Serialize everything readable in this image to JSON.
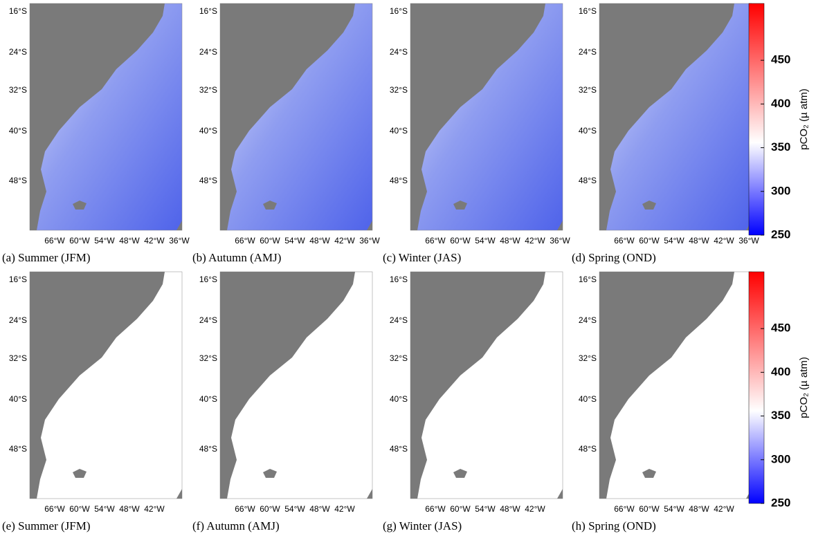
{
  "panels": [
    {
      "caption": "(a) Summer (JFM)",
      "yticks": [
        "16°S",
        "24°S",
        "32°S",
        "40°S",
        "48°S"
      ],
      "xticks": [
        "66°W",
        "60°W",
        "54°W",
        "48°W",
        "42°W",
        "36°W"
      ]
    },
    {
      "caption": "(b) Autumn (AMJ)",
      "yticks": [
        "16°S",
        "24°S",
        "32°S",
        "40°S",
        "48°S"
      ],
      "xticks": [
        "66°W",
        "60°W",
        "54°W",
        "48°W",
        "42°W",
        "36°W"
      ]
    },
    {
      "caption": "(c) Winter (JAS)",
      "yticks": [
        "16°S",
        "24°S",
        "32°S",
        "40°S",
        "48°S"
      ],
      "xticks": [
        "66°W",
        "60°W",
        "54°W",
        "48°W",
        "42°W",
        "36°W"
      ]
    },
    {
      "caption": "(d) Spring (OND)",
      "yticks": [
        "16°S",
        "24°S",
        "32°S",
        "40°S",
        "48°S"
      ],
      "xticks": [
        "66°W",
        "60°W",
        "54°W",
        "48°W",
        "42°W",
        "36°W"
      ]
    },
    {
      "caption": "(e) Summer (JFM)",
      "yticks": [
        "16°S",
        "24°S",
        "32°S",
        "40°S",
        "48°S"
      ],
      "xticks": [
        "66°W",
        "60°W",
        "54°W",
        "48°W",
        "42°W"
      ]
    },
    {
      "caption": "(f) Autumn (AMJ)",
      "yticks": [
        "16°S",
        "24°S",
        "32°S",
        "40°S",
        "48°S"
      ],
      "xticks": [
        "66°W",
        "60°W",
        "54°W",
        "48°W",
        "42°W"
      ]
    },
    {
      "caption": "(g) Winter (JAS)",
      "yticks": [
        "16°S",
        "24°S",
        "32°S",
        "40°S",
        "48°S"
      ],
      "xticks": [
        "66°W",
        "60°W",
        "54°W",
        "48°W",
        "42°W"
      ]
    },
    {
      "caption": "(h) Spring (OND)",
      "yticks": [
        "16°S",
        "24°S",
        "32°S",
        "40°S",
        "48°S"
      ],
      "xticks": [
        "66°W",
        "60°W",
        "54°W",
        "48°W",
        "42°W"
      ]
    }
  ],
  "colorbars": [
    {
      "label": "pCO₂ (µ atm)",
      "lim": [
        250,
        515
      ],
      "ticks": [
        250,
        300,
        350,
        400,
        450
      ]
    },
    {
      "label": "pCO₂ (µ atm)",
      "lim": [
        250,
        515
      ],
      "ticks": [
        250,
        300,
        350,
        400,
        450
      ]
    }
  ]
}
